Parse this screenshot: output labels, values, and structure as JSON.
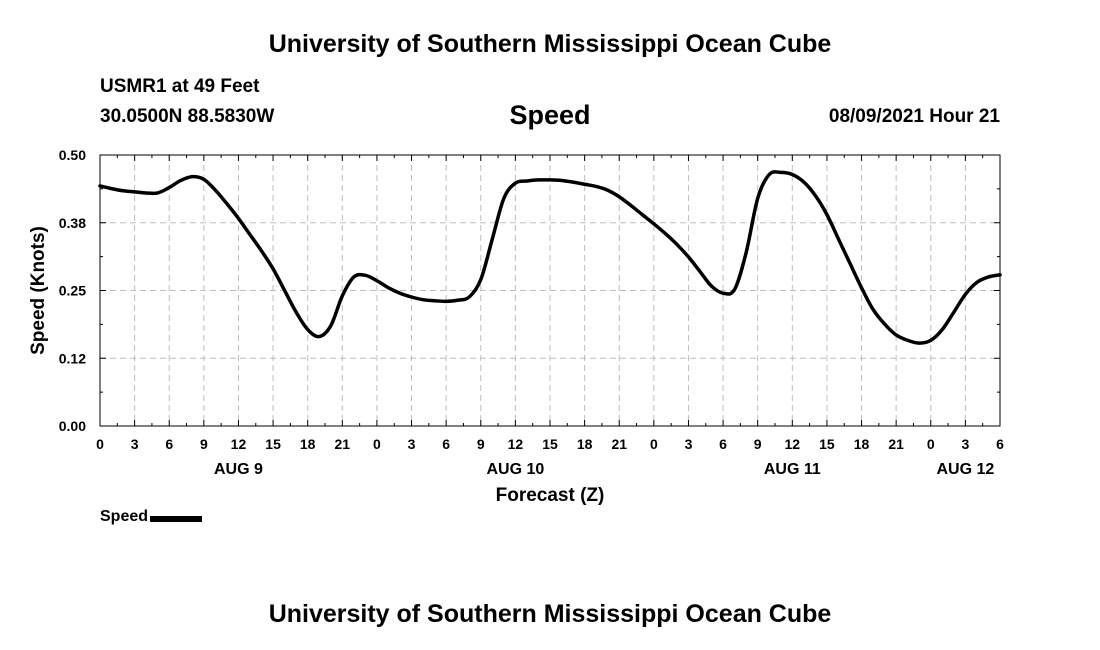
{
  "header": {
    "title": "University of Southern Mississippi Ocean Cube",
    "station": "USMR1 at 49 Feet",
    "coordinates": "30.0500N  88.5830W",
    "run_time": "08/09/2021 Hour 21"
  },
  "footer": {
    "title": "University of Southern Mississippi Ocean Cube"
  },
  "chart_data": {
    "type": "line",
    "title": "Speed",
    "xlabel": "Forecast (Z)",
    "ylabel": "Speed (Knots)",
    "x_unit": "hours since AUG 9 00Z",
    "xlim": [
      0,
      78
    ],
    "ylim": [
      0,
      0.5
    ],
    "yticks": [
      0.0,
      0.125,
      0.25,
      0.375,
      0.5
    ],
    "ytick_labels": [
      "0.00",
      "0.12",
      "0.25",
      "0.38",
      "0.50"
    ],
    "xtick_labels": [
      "0",
      "3",
      "6",
      "9",
      "12",
      "15",
      "18",
      "21",
      "0",
      "3",
      "6",
      "9",
      "12",
      "15",
      "18",
      "21",
      "0",
      "3",
      "6",
      "9",
      "12",
      "15",
      "18",
      "21",
      "0",
      "3",
      "6"
    ],
    "day_labels": [
      {
        "label": "AUG 9",
        "hour": 12
      },
      {
        "label": "AUG 10",
        "hour": 36
      },
      {
        "label": "AUG 11",
        "hour": 60
      },
      {
        "label": "AUG 12",
        "hour": 75
      }
    ],
    "grid": true,
    "legend": "bottom-left",
    "series": [
      {
        "name": "Speed",
        "color": "#000000",
        "x": [
          0,
          1,
          2,
          3,
          4,
          5,
          6,
          7,
          8,
          9,
          10,
          11,
          12,
          13,
          14,
          15,
          16,
          17,
          18,
          19,
          20,
          21,
          22,
          23,
          24,
          25,
          26,
          27,
          28,
          29,
          30,
          31,
          32,
          33,
          34,
          35,
          36,
          37,
          38,
          39,
          40,
          41,
          42,
          43,
          44,
          45,
          46,
          47,
          48,
          49,
          50,
          51,
          52,
          53,
          54,
          55,
          56,
          57,
          58,
          59,
          60,
          61,
          62,
          63,
          64,
          65,
          66,
          67,
          68,
          69,
          70,
          71,
          72,
          73,
          74,
          75,
          76,
          77,
          78
        ],
        "values": [
          0.443,
          0.438,
          0.434,
          0.432,
          0.43,
          0.43,
          0.44,
          0.453,
          0.46,
          0.455,
          0.435,
          0.41,
          0.383,
          0.353,
          0.323,
          0.29,
          0.25,
          0.21,
          0.178,
          0.165,
          0.185,
          0.24,
          0.275,
          0.278,
          0.268,
          0.255,
          0.245,
          0.238,
          0.233,
          0.231,
          0.23,
          0.232,
          0.238,
          0.27,
          0.345,
          0.42,
          0.448,
          0.452,
          0.454,
          0.454,
          0.453,
          0.45,
          0.446,
          0.442,
          0.435,
          0.423,
          0.407,
          0.39,
          0.373,
          0.355,
          0.335,
          0.312,
          0.285,
          0.258,
          0.245,
          0.252,
          0.32,
          0.42,
          0.464,
          0.468,
          0.464,
          0.45,
          0.425,
          0.39,
          0.345,
          0.3,
          0.255,
          0.215,
          0.188,
          0.168,
          0.158,
          0.153,
          0.158,
          0.178,
          0.21,
          0.243,
          0.265,
          0.275,
          0.279
        ]
      }
    ]
  }
}
